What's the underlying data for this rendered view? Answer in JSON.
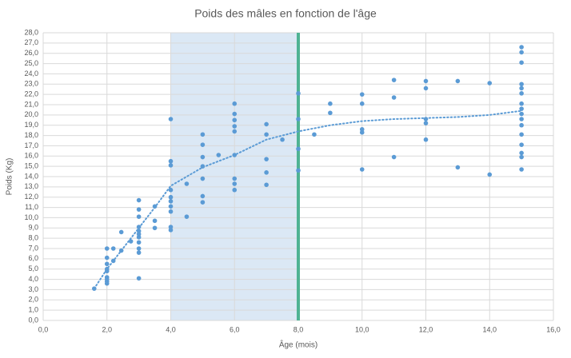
{
  "chart_data": {
    "type": "scatter",
    "title": "Poids des mâles en fonction de l'âge",
    "xlabel": "Âge (mois)",
    "ylabel": "Poids (Kg)",
    "x": [
      1.6,
      2.0,
      2.0,
      2.0,
      2.0,
      2.0,
      2.0,
      2.0,
      2.0,
      2.0,
      2.2,
      2.2,
      2.45,
      2.45,
      2.75,
      3.0,
      3.0,
      3.0,
      3.0,
      3.0,
      3.0,
      3.0,
      3.0,
      3.0,
      3.0,
      3.0,
      3.5,
      3.5,
      3.5,
      4.0,
      4.0,
      4.0,
      4.0,
      4.0,
      4.0,
      4.0,
      4.0,
      4.0,
      4.0,
      4.5,
      4.5,
      5.0,
      5.0,
      5.0,
      5.0,
      5.0,
      5.0,
      5.0,
      5.5,
      6.0,
      6.0,
      6.0,
      6.0,
      6.0,
      6.0,
      6.0,
      6.0,
      6.0,
      7.0,
      7.0,
      7.0,
      7.0,
      7.0,
      7.5,
      8.0,
      8.0,
      8.0,
      8.0,
      8.5,
      9.0,
      9.0,
      10.0,
      10.0,
      10.0,
      10.0,
      10.0,
      11.0,
      11.0,
      11.0,
      12.0,
      12.0,
      12.0,
      12.0,
      12.0,
      13.0,
      13.0,
      14.0,
      14.0,
      15.0,
      15.0,
      15.0,
      15.0,
      15.0,
      15.0,
      15.0,
      15.0,
      15.0,
      15.0,
      15.0,
      15.0,
      15.0,
      15.0,
      15.0,
      15.0
    ],
    "values": [
      3.1,
      7.0,
      6.1,
      5.5,
      5.0,
      4.8,
      4.2,
      4.0,
      3.8,
      3.6,
      7.0,
      5.8,
      8.6,
      6.8,
      7.7,
      11.7,
      10.8,
      10.1,
      9.1,
      8.7,
      8.4,
      8.1,
      7.6,
      7.0,
      6.6,
      4.1,
      11.1,
      9.7,
      9.0,
      19.6,
      15.5,
      15.1,
      12.7,
      12.0,
      11.6,
      11.1,
      10.6,
      9.1,
      8.8,
      13.3,
      10.1,
      18.1,
      17.1,
      15.9,
      15.0,
      13.8,
      12.1,
      11.5,
      16.1,
      21.1,
      20.1,
      19.5,
      18.9,
      18.4,
      16.1,
      13.8,
      13.3,
      12.7,
      19.1,
      18.1,
      15.7,
      14.4,
      13.2,
      17.6,
      22.1,
      19.6,
      16.7,
      14.6,
      18.1,
      21.1,
      20.2,
      22.0,
      21.1,
      18.6,
      18.3,
      14.7,
      23.4,
      21.7,
      15.9,
      23.3,
      22.6,
      19.6,
      19.2,
      17.6,
      23.3,
      14.9,
      23.1,
      14.2,
      26.6,
      26.1,
      25.1,
      23.0,
      22.6,
      22.1,
      21.1,
      20.6,
      20.1,
      19.6,
      19.0,
      18.1,
      17.1,
      16.3,
      15.9,
      14.7
    ],
    "color": "#5b9bd5",
    "trendline": {
      "x": [
        1.6,
        2,
        2.5,
        3,
        3.5,
        4,
        5,
        6,
        7,
        8,
        9,
        10,
        11,
        12,
        13,
        14,
        15
      ],
      "values": [
        3.1,
        5.0,
        7.0,
        9.0,
        11.0,
        13.1,
        14.9,
        16.1,
        17.6,
        18.4,
        19.0,
        19.4,
        19.6,
        19.7,
        19.8,
        20.0,
        20.4
      ],
      "color": "#5b9bd5"
    },
    "shaded_band": {
      "x": [
        4,
        8
      ],
      "color": "#dbe8f5"
    },
    "vline": {
      "x": 8,
      "color": "#4fb393"
    },
    "grid": true,
    "xlim": [
      0,
      16
    ],
    "ylim": [
      0,
      28
    ],
    "xticks": [
      {
        "value": 0,
        "label": "0,0"
      },
      {
        "value": 2,
        "label": "2,0"
      },
      {
        "value": 4,
        "label": "4,0"
      },
      {
        "value": 6,
        "label": "6,0"
      },
      {
        "value": 8,
        "label": "8,0"
      },
      {
        "value": 10,
        "label": "10,0"
      },
      {
        "value": 12,
        "label": "12,0"
      },
      {
        "value": 14,
        "label": "14,0"
      },
      {
        "value": 16,
        "label": "16,0"
      }
    ],
    "yticks": [
      {
        "value": 0,
        "label": "0,0"
      },
      {
        "value": 1,
        "label": "1,0"
      },
      {
        "value": 2,
        "label": "2,0"
      },
      {
        "value": 3,
        "label": "3,0"
      },
      {
        "value": 4,
        "label": "4,0"
      },
      {
        "value": 5,
        "label": "5,0"
      },
      {
        "value": 6,
        "label": "6,0"
      },
      {
        "value": 7,
        "label": "7,0"
      },
      {
        "value": 8,
        "label": "8,0"
      },
      {
        "value": 9,
        "label": "9,0"
      },
      {
        "value": 10,
        "label": "10,0"
      },
      {
        "value": 11,
        "label": "11,0"
      },
      {
        "value": 12,
        "label": "12,0"
      },
      {
        "value": 13,
        "label": "13,0"
      },
      {
        "value": 14,
        "label": "14,0"
      },
      {
        "value": 15,
        "label": "15,0"
      },
      {
        "value": 16,
        "label": "16,0"
      },
      {
        "value": 17,
        "label": "17,0"
      },
      {
        "value": 18,
        "label": "18,0"
      },
      {
        "value": 19,
        "label": "19,0"
      },
      {
        "value": 20,
        "label": "20,0"
      },
      {
        "value": 21,
        "label": "21,0"
      },
      {
        "value": 22,
        "label": "22,0"
      },
      {
        "value": 23,
        "label": "23,0"
      },
      {
        "value": 24,
        "label": "24,0"
      },
      {
        "value": 25,
        "label": "25,0"
      },
      {
        "value": 26,
        "label": "26,0"
      },
      {
        "value": 27,
        "label": "27,0"
      },
      {
        "value": 28,
        "label": "28,0"
      }
    ]
  }
}
